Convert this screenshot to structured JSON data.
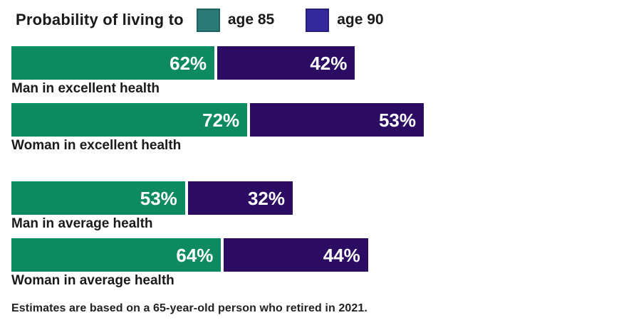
{
  "title": "Probability of living to",
  "legend": {
    "items": [
      {
        "id": "age-85",
        "label": "age 85",
        "swatch_color": "#2b7a78",
        "swatch_border": "#1e6361"
      },
      {
        "id": "age-90",
        "label": "age 90",
        "swatch_color": "#35289d",
        "swatch_border": "#261f7c"
      }
    ]
  },
  "footnote": "Estimates are based on a 65-year-old person who retired in 2021.",
  "chart_data": {
    "type": "bar",
    "orientation": "horizontal",
    "title": "Probability of living to",
    "categories": [
      "Man in excellent health",
      "Woman in excellent health",
      "Man in average health",
      "Woman in average health"
    ],
    "series": [
      {
        "name": "age 85",
        "color": "#0e8a60",
        "values": [
          62,
          72,
          53,
          64
        ]
      },
      {
        "name": "age 90",
        "color": "#2c0b63",
        "values": [
          42,
          53,
          32,
          44
        ]
      }
    ],
    "value_suffix": "%",
    "value_label_color": "#ffffff",
    "xlim": [
      0,
      100
    ],
    "grid": false,
    "legend_position": "top",
    "group_breaks_after": [
      1
    ],
    "footnote": "Estimates are based on a 65-year-old person who retired in 2021."
  }
}
